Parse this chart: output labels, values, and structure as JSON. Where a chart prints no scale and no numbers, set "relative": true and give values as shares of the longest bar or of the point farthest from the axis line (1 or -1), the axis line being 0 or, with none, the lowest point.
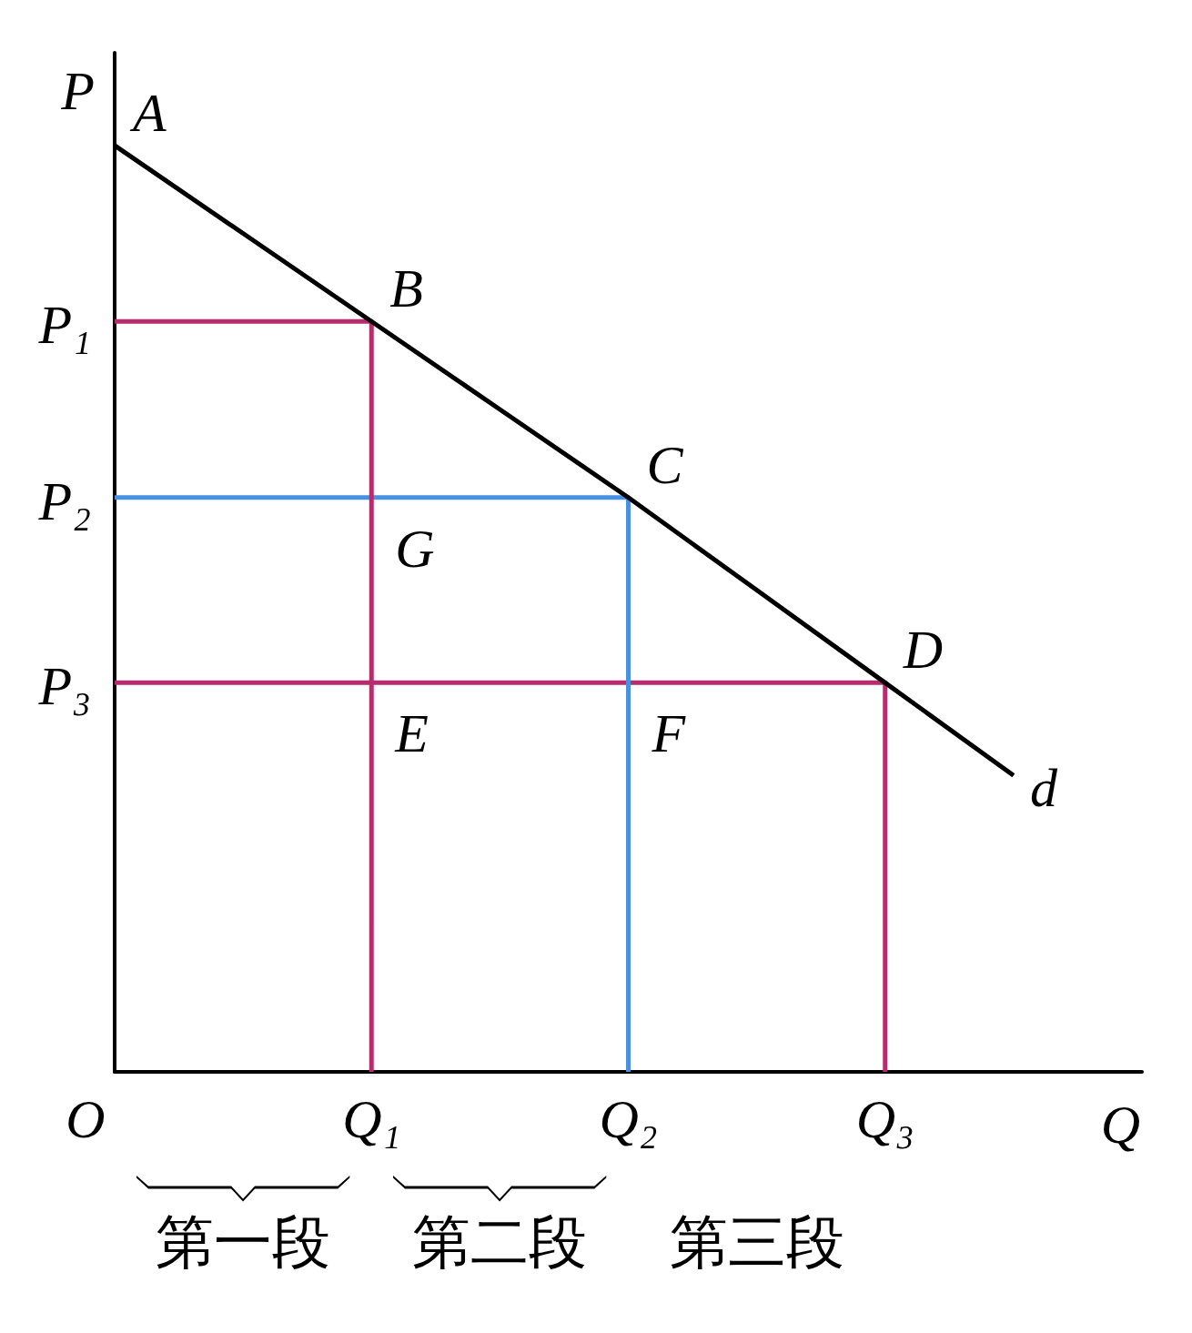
{
  "chart_data": {
    "type": "line",
    "relative": true,
    "xlabel": "Q",
    "ylabel": "P",
    "categories": [
      "O",
      null,
      "Q₁",
      null,
      "Q₂",
      null,
      "Q₃",
      null,
      null
    ],
    "series": [
      {
        "color": "#b52d6e",
        "x": [
          "O",
          "Q₃",
          "Q₃"
        ],
        "values": [
          0.42,
          0.42,
          0
        ]
      },
      {
        "color": "#4a90e2",
        "x": [
          "O",
          "Q₂",
          "Q₂"
        ],
        "values": [
          0.62,
          0.62,
          0
        ]
      },
      {
        "color": "#b52d6e",
        "x": [
          "O",
          "Q₁",
          "Q₁"
        ],
        "values": [
          0.81,
          0.81,
          0
        ]
      },
      {
        "name": "d",
        "color": "#000000",
        "values": [
          1,
          0.905,
          0.81,
          0.715,
          0.62,
          0.52,
          0.42,
          0.32,
          null
        ]
      }
    ],
    "annotations": [
      {
        "text": "A",
        "x": "O",
        "y": 1
      },
      {
        "text": "B",
        "x": "Q₁",
        "y": 0.81
      },
      {
        "text": "C",
        "x": "Q₂",
        "y": 0.62
      },
      {
        "text": "D",
        "x": "Q₃",
        "y": 0.42
      },
      {
        "text": "G",
        "x": "Q₁",
        "y": 0.62
      },
      {
        "text": "E",
        "x": "Q₁",
        "y": 0.42
      },
      {
        "text": "F",
        "x": "Q₂",
        "y": 0.42
      },
      {
        "text": "P₁",
        "x": "O",
        "y": 0.81
      },
      {
        "text": "P₂",
        "x": "O",
        "y": 0.62
      },
      {
        "text": "P₃",
        "x": "O",
        "y": 0.42
      },
      "第一段",
      "第二段",
      "第三段"
    ],
    "marker": "none",
    "line_style": "solid"
  }
}
